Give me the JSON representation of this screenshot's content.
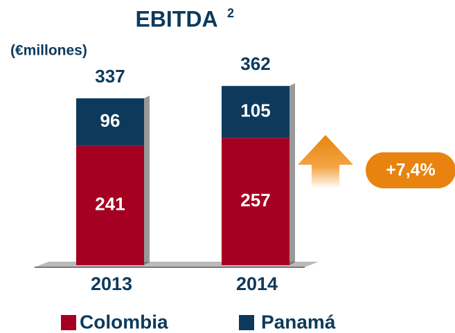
{
  "chart_data": {
    "type": "bar",
    "stacked": true,
    "title": "EBITDA",
    "title_superscript": "2",
    "subtitle": "(€millones)",
    "categories": [
      "2013",
      "2014"
    ],
    "series": [
      {
        "name": "Colombia",
        "color": "#a50021",
        "values": [
          241,
          257
        ]
      },
      {
        "name": "Panamá",
        "color": "#0d3a5c",
        "values": [
          96,
          105
        ]
      }
    ],
    "totals": [
      337,
      362
    ],
    "annotation": "+7,4%"
  }
}
